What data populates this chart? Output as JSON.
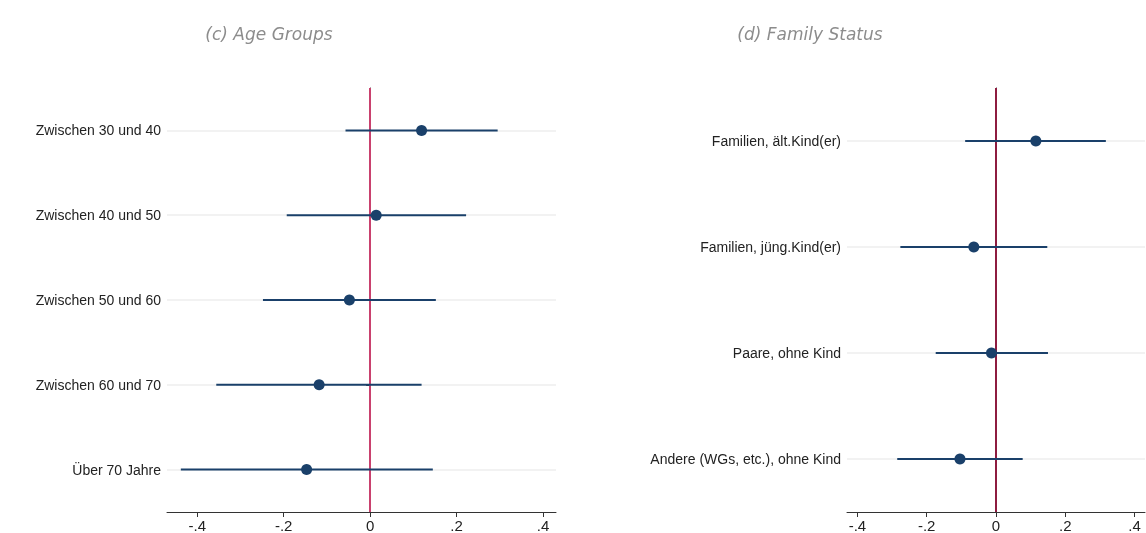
{
  "chart_data": [
    {
      "type": "scatter",
      "title": "(c) Age Groups",
      "orientation": "horizontal",
      "categories": [
        "Zwischen 30 und 40",
        "Zwischen 40 und 50",
        "Zwischen 50 und 60",
        "Zwischen 60 und 70",
        "Über 70 Jahre"
      ],
      "series": [
        {
          "color": "#1a406a",
          "values": [
            0.119,
            0.014,
            -0.048,
            -0.118,
            -0.147
          ],
          "errors": [
            [
              -0.057,
              0.295
            ],
            [
              -0.193,
              0.222
            ],
            [
              -0.248,
              0.152
            ],
            [
              -0.356,
              0.119
            ],
            [
              -0.438,
              0.145
            ]
          ]
        }
      ],
      "xlim": [
        -0.47,
        0.43
      ],
      "xticks": [
        {
          "value": -0.4,
          "label": "-.4"
        },
        {
          "value": -0.2,
          "label": "-.2"
        },
        0,
        {
          "value": 0.2,
          "label": ".2"
        },
        {
          "value": 0.4,
          "label": ".4"
        }
      ],
      "ref_lines": [
        {
          "axis": "x",
          "value": 0,
          "color": "#c9416e"
        }
      ],
      "grid": "y",
      "marker": "circle"
    },
    {
      "type": "scatter",
      "title": "(d) Family Status",
      "orientation": "horizontal",
      "categories": [
        "Familien, ält.Kind(er)",
        "Familien, jüng.Kind(er)",
        "Paare, ohne Kind",
        "Andere (WGs, etc.), ohne Kind"
      ],
      "series": [
        {
          "color": "#1a406a",
          "values": [
            0.115,
            -0.064,
            -0.013,
            -0.104
          ],
          "errors": [
            [
              -0.089,
              0.317
            ],
            [
              -0.276,
              0.148
            ],
            [
              -0.174,
              0.15
            ],
            [
              -0.285,
              0.077
            ]
          ]
        }
      ],
      "xlim": [
        -0.43,
        0.43
      ],
      "xticks": [
        {
          "value": -0.4,
          "label": "-.4"
        },
        {
          "value": -0.2,
          "label": "-.2"
        },
        0,
        {
          "value": 0.2,
          "label": ".2"
        },
        {
          "value": 0.4,
          "label": ".4"
        }
      ],
      "ref_lines": [
        {
          "axis": "x",
          "value": 0,
          "color": "#8e1c40"
        }
      ],
      "grid": "y",
      "marker": "circle"
    }
  ]
}
